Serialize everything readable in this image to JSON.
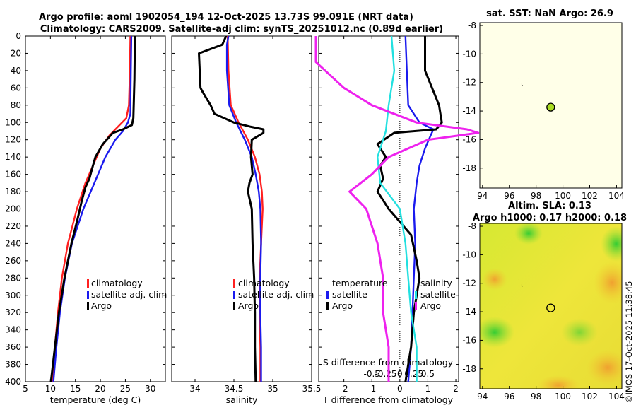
{
  "header": {
    "title_line1": "Argo profile: aoml 1902054_194 12-Oct-2025 13.73S 99.091E (NRT data)",
    "title_line2": "Climatology: CARS2009. Satellite-adj clim: synTS_20251012.nc (0.89d earlier)"
  },
  "side_text": "©IMOS 17-Oct-2025 11:38:45",
  "colors": {
    "climatology": "#ff2020",
    "satellite": "#1a1aee",
    "argo": "#000000",
    "salinity_satellite": "#22e0e0",
    "salinity_argo": "#ee22ee",
    "sst_bg": "#ffffe8",
    "marker": "#aadd22"
  },
  "chart_data": [
    {
      "type": "line",
      "id": "temperature",
      "xlabel": "temperature (deg C)",
      "xlim": [
        5,
        33
      ],
      "xticks": [
        5,
        10,
        15,
        20,
        25,
        30
      ],
      "ylim": [
        0,
        400
      ],
      "yticks": [
        0,
        20,
        40,
        60,
        80,
        100,
        120,
        140,
        160,
        180,
        200,
        220,
        240,
        260,
        280,
        300,
        320,
        340,
        360,
        380,
        400
      ],
      "legend": [
        "climatology",
        "satellite-adj. clim",
        "Argo"
      ],
      "series": [
        {
          "name": "climatology",
          "depth": [
            0,
            40,
            80,
            95,
            105,
            115,
            130,
            150,
            170,
            200,
            240,
            280,
            320,
            360,
            400
          ],
          "values": [
            26.0,
            25.9,
            25.7,
            25.2,
            23.5,
            21.8,
            20.0,
            18.5,
            17.0,
            15.3,
            13.5,
            12.3,
            11.5,
            10.9,
            10.3
          ]
        },
        {
          "name": "satellite-adj. clim",
          "depth": [
            0,
            40,
            90,
            100,
            110,
            120,
            140,
            170,
            200,
            240,
            280,
            320,
            360,
            400
          ],
          "values": [
            26.2,
            26.1,
            26.0,
            25.5,
            24.5,
            23.0,
            21.0,
            18.8,
            16.6,
            14.3,
            12.9,
            11.9,
            11.2,
            10.6
          ]
        },
        {
          "name": "Argo",
          "depth": [
            0,
            50,
            95,
            103,
            108,
            112,
            125,
            140,
            150,
            165,
            175,
            190,
            210,
            240,
            280,
            320,
            360,
            400
          ],
          "values": [
            26.9,
            26.8,
            26.6,
            26.3,
            24.5,
            22.5,
            20.5,
            19.0,
            18.5,
            17.8,
            17.0,
            16.3,
            15.5,
            14.2,
            12.8,
            11.7,
            10.9,
            10.1
          ]
        }
      ]
    },
    {
      "type": "line",
      "id": "salinity",
      "xlabel": "salinity",
      "xlim": [
        33.7,
        35.5
      ],
      "xticks": [
        34,
        34.5,
        35,
        35.5
      ],
      "ylim": [
        0,
        400
      ],
      "legend": [
        "climatology",
        "satellite-adj. clim",
        "Argo"
      ],
      "series": [
        {
          "name": "climatology",
          "depth": [
            0,
            40,
            80,
            100,
            120,
            140,
            160,
            180,
            200,
            240,
            280,
            320,
            360,
            400
          ],
          "values": [
            34.42,
            34.43,
            34.46,
            34.56,
            34.68,
            34.77,
            34.83,
            34.86,
            34.87,
            34.85,
            34.83,
            34.83,
            34.84,
            34.84
          ]
        },
        {
          "name": "satellite-adj. clim",
          "depth": [
            0,
            10,
            40,
            80,
            100,
            120,
            140,
            160,
            180,
            200,
            240,
            280,
            320,
            360,
            400
          ],
          "values": [
            34.43,
            34.41,
            34.41,
            34.44,
            34.53,
            34.64,
            34.73,
            34.78,
            34.82,
            34.84,
            34.85,
            34.84,
            34.84,
            34.85,
            34.85
          ]
        },
        {
          "name": "Argo",
          "depth": [
            0,
            10,
            20,
            60,
            65,
            80,
            90,
            100,
            105,
            108,
            112,
            120,
            140,
            160,
            170,
            180,
            200,
            240,
            280,
            320,
            360,
            400
          ],
          "values": [
            34.4,
            34.35,
            34.05,
            34.07,
            34.1,
            34.2,
            34.25,
            34.5,
            34.72,
            34.88,
            34.88,
            34.73,
            34.72,
            34.74,
            34.7,
            34.68,
            34.73,
            34.74,
            34.76,
            34.77,
            34.77,
            34.78
          ]
        }
      ]
    },
    {
      "type": "line",
      "id": "differences",
      "xlabel": "T difference from climatology",
      "xlabel_top": "S difference from climatology",
      "xlim": [
        -2.9,
        2.1
      ],
      "xticks": [
        -2,
        -1,
        0,
        1,
        2
      ],
      "xticks_s": [
        "-0.5",
        "-0.25",
        "0",
        "0.25",
        "0.5"
      ],
      "ylim": [
        0,
        400
      ],
      "legend_left_title": "temperature",
      "legend_right_title": "salinity",
      "legend_left": [
        "satellite",
        "Argo"
      ],
      "legend_right": [
        "satellite",
        "Argo"
      ],
      "series": [
        {
          "name": "T satellite",
          "depth": [
            0,
            40,
            80,
            100,
            108,
            115,
            130,
            150,
            170,
            200,
            240,
            280,
            320,
            360,
            400
          ],
          "values": [
            0.2,
            0.25,
            0.3,
            0.7,
            1.2,
            1.1,
            0.9,
            0.7,
            0.6,
            0.5,
            0.55,
            0.5,
            0.45,
            0.4,
            0.3
          ]
        },
        {
          "name": "T Argo",
          "depth": [
            0,
            40,
            80,
            100,
            108,
            112,
            125,
            140,
            150,
            165,
            180,
            200,
            230,
            260,
            280,
            320,
            360,
            400
          ],
          "values": [
            0.9,
            0.9,
            1.4,
            1.5,
            1.3,
            -0.2,
            -0.8,
            -0.5,
            -0.7,
            -0.6,
            -0.8,
            -0.4,
            0.4,
            0.6,
            0.7,
            0.5,
            0.4,
            0.2
          ]
        },
        {
          "name": "S satellite",
          "depth": [
            0,
            40,
            80,
            110,
            140,
            170,
            200,
            240,
            280,
            320,
            360,
            400
          ],
          "values": [
            -0.15,
            -0.1,
            -0.2,
            -0.25,
            -0.4,
            -0.35,
            0.0,
            0.1,
            0.15,
            0.2,
            0.3,
            0.3
          ]
        },
        {
          "name": "S Argo",
          "depth": [
            0,
            30,
            60,
            80,
            100,
            108,
            112,
            120,
            140,
            160,
            180,
            200,
            240,
            280,
            320,
            360,
            400
          ],
          "values": [
            -1.5,
            -1.5,
            -1.0,
            -0.5,
            0.3,
            1.2,
            1.4,
            0.5,
            -0.2,
            -0.5,
            -0.9,
            -0.6,
            -0.4,
            -0.3,
            -0.3,
            -0.2,
            -0.2
          ]
        }
      ]
    },
    {
      "type": "scatter",
      "id": "sst_map",
      "title": "sat. SST: NaN Argo: 26.9",
      "xlim": [
        93.8,
        104.4
      ],
      "ylim": [
        -19.4,
        -7.8
      ],
      "xticks": [
        94,
        96,
        98,
        100,
        102,
        104
      ],
      "yticks": [
        -8,
        -10,
        -12,
        -14,
        -16,
        -18
      ],
      "points": [
        {
          "lon": 99.09,
          "lat": -13.73
        }
      ]
    },
    {
      "type": "heatmap",
      "id": "sla_map",
      "title_line1": "Altim. SLA: 0.13",
      "title_line2": "Argo h1000: 0.17 h2000: 0.18",
      "xlim": [
        93.8,
        104.4
      ],
      "ylim": [
        -19.4,
        -7.8
      ],
      "xticks": [
        94,
        96,
        98,
        100,
        102,
        104
      ],
      "yticks": [
        -8,
        -10,
        -12,
        -14,
        -16,
        -18
      ],
      "points": [
        {
          "lon": 99.09,
          "lat": -13.73
        }
      ]
    }
  ]
}
